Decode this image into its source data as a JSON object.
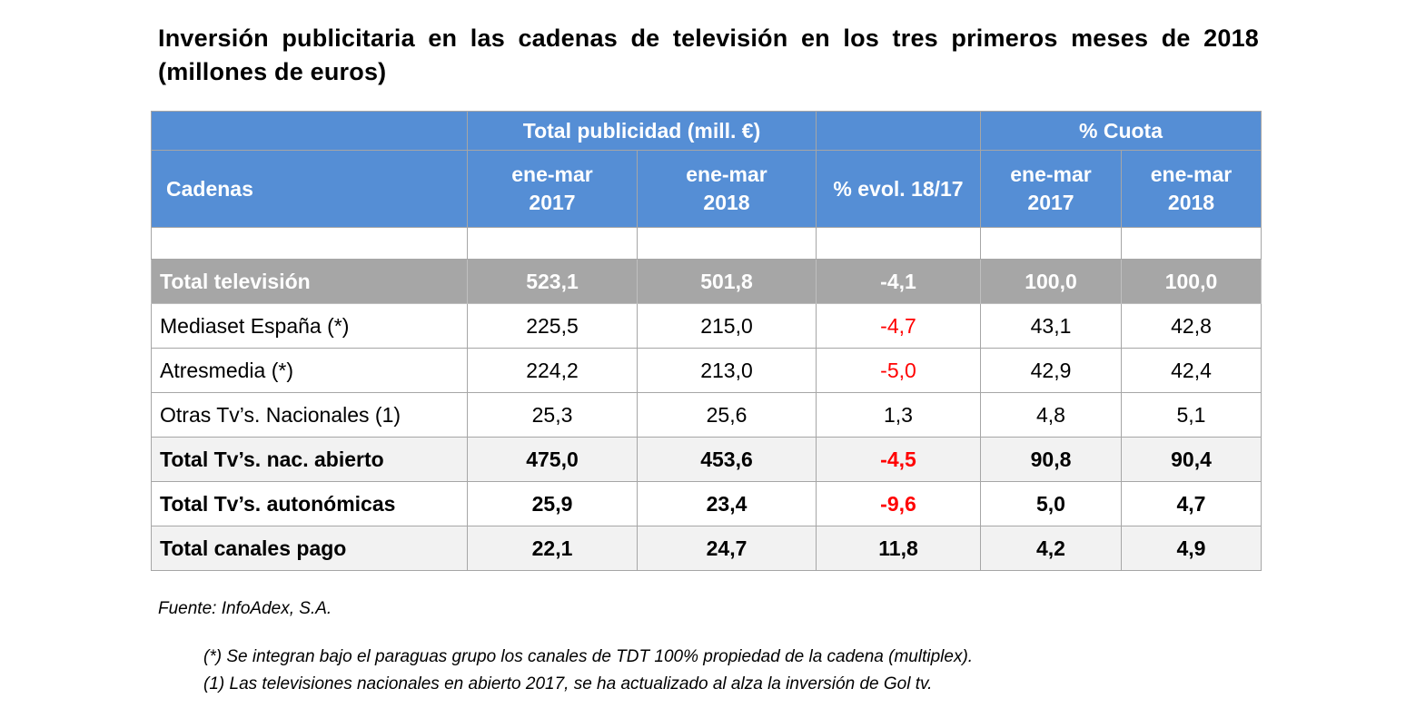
{
  "title": "Inversión publicitaria en las cadenas de televisión en los tres primeros meses de 2018 (millones de euros)",
  "header": {
    "group_total": "Total publicidad (mill. €)",
    "group_share": "% Cuota",
    "col_channels": "Cadenas",
    "col_2017_a": "ene-mar",
    "col_2017_b": "2017",
    "col_2018_a": "ene-mar",
    "col_2018_b": "2018",
    "col_evol": "% evol. 18/17",
    "col_share2017_a": "ene-mar",
    "col_share2017_b": "2017",
    "col_share2018_a": "ene-mar",
    "col_share2018_b": "2018"
  },
  "rows": [
    {
      "name": "Total televisión",
      "v2017": "523,1",
      "v2018": "501,8",
      "evol": "-4,1",
      "s2017": "100,0",
      "s2018": "100,0"
    },
    {
      "name": "Mediaset España (*)",
      "v2017": "225,5",
      "v2018": "215,0",
      "evol": "-4,7",
      "s2017": "43,1",
      "s2018": "42,8"
    },
    {
      "name": "Atresmedia (*)",
      "v2017": "224,2",
      "v2018": "213,0",
      "evol": "-5,0",
      "s2017": "42,9",
      "s2018": "42,4"
    },
    {
      "name": "Otras Tv’s. Nacionales (1)",
      "v2017": "25,3",
      "v2018": "25,6",
      "evol": "1,3",
      "s2017": "4,8",
      "s2018": "5,1"
    },
    {
      "name": "Total Tv’s. nac. abierto",
      "v2017": "475,0",
      "v2018": "453,6",
      "evol": "-4,5",
      "s2017": "90,8",
      "s2018": "90,4"
    },
    {
      "name": "Total Tv’s. autonómicas",
      "v2017": "25,9",
      "v2018": "23,4",
      "evol": "-9,6",
      "s2017": "5,0",
      "s2018": "4,7"
    },
    {
      "name": "Total canales pago",
      "v2017": "22,1",
      "v2018": "24,7",
      "evol": "11,8",
      "s2017": "4,2",
      "s2018": "4,9"
    }
  ],
  "source": "Fuente: InfoAdex, S.A.",
  "notes": [
    "(*) Se integran bajo el paraguas grupo los canales de TDT 100% propiedad de la cadena (multiplex).",
    "(1) Las televisiones nacionales en abierto 2017, se ha actualizado al alza la inversión de Gol tv."
  ],
  "colors": {
    "header_bg": "#558ed5",
    "total_row_bg": "#a6a6a6",
    "negative_text": "#ff0000"
  }
}
